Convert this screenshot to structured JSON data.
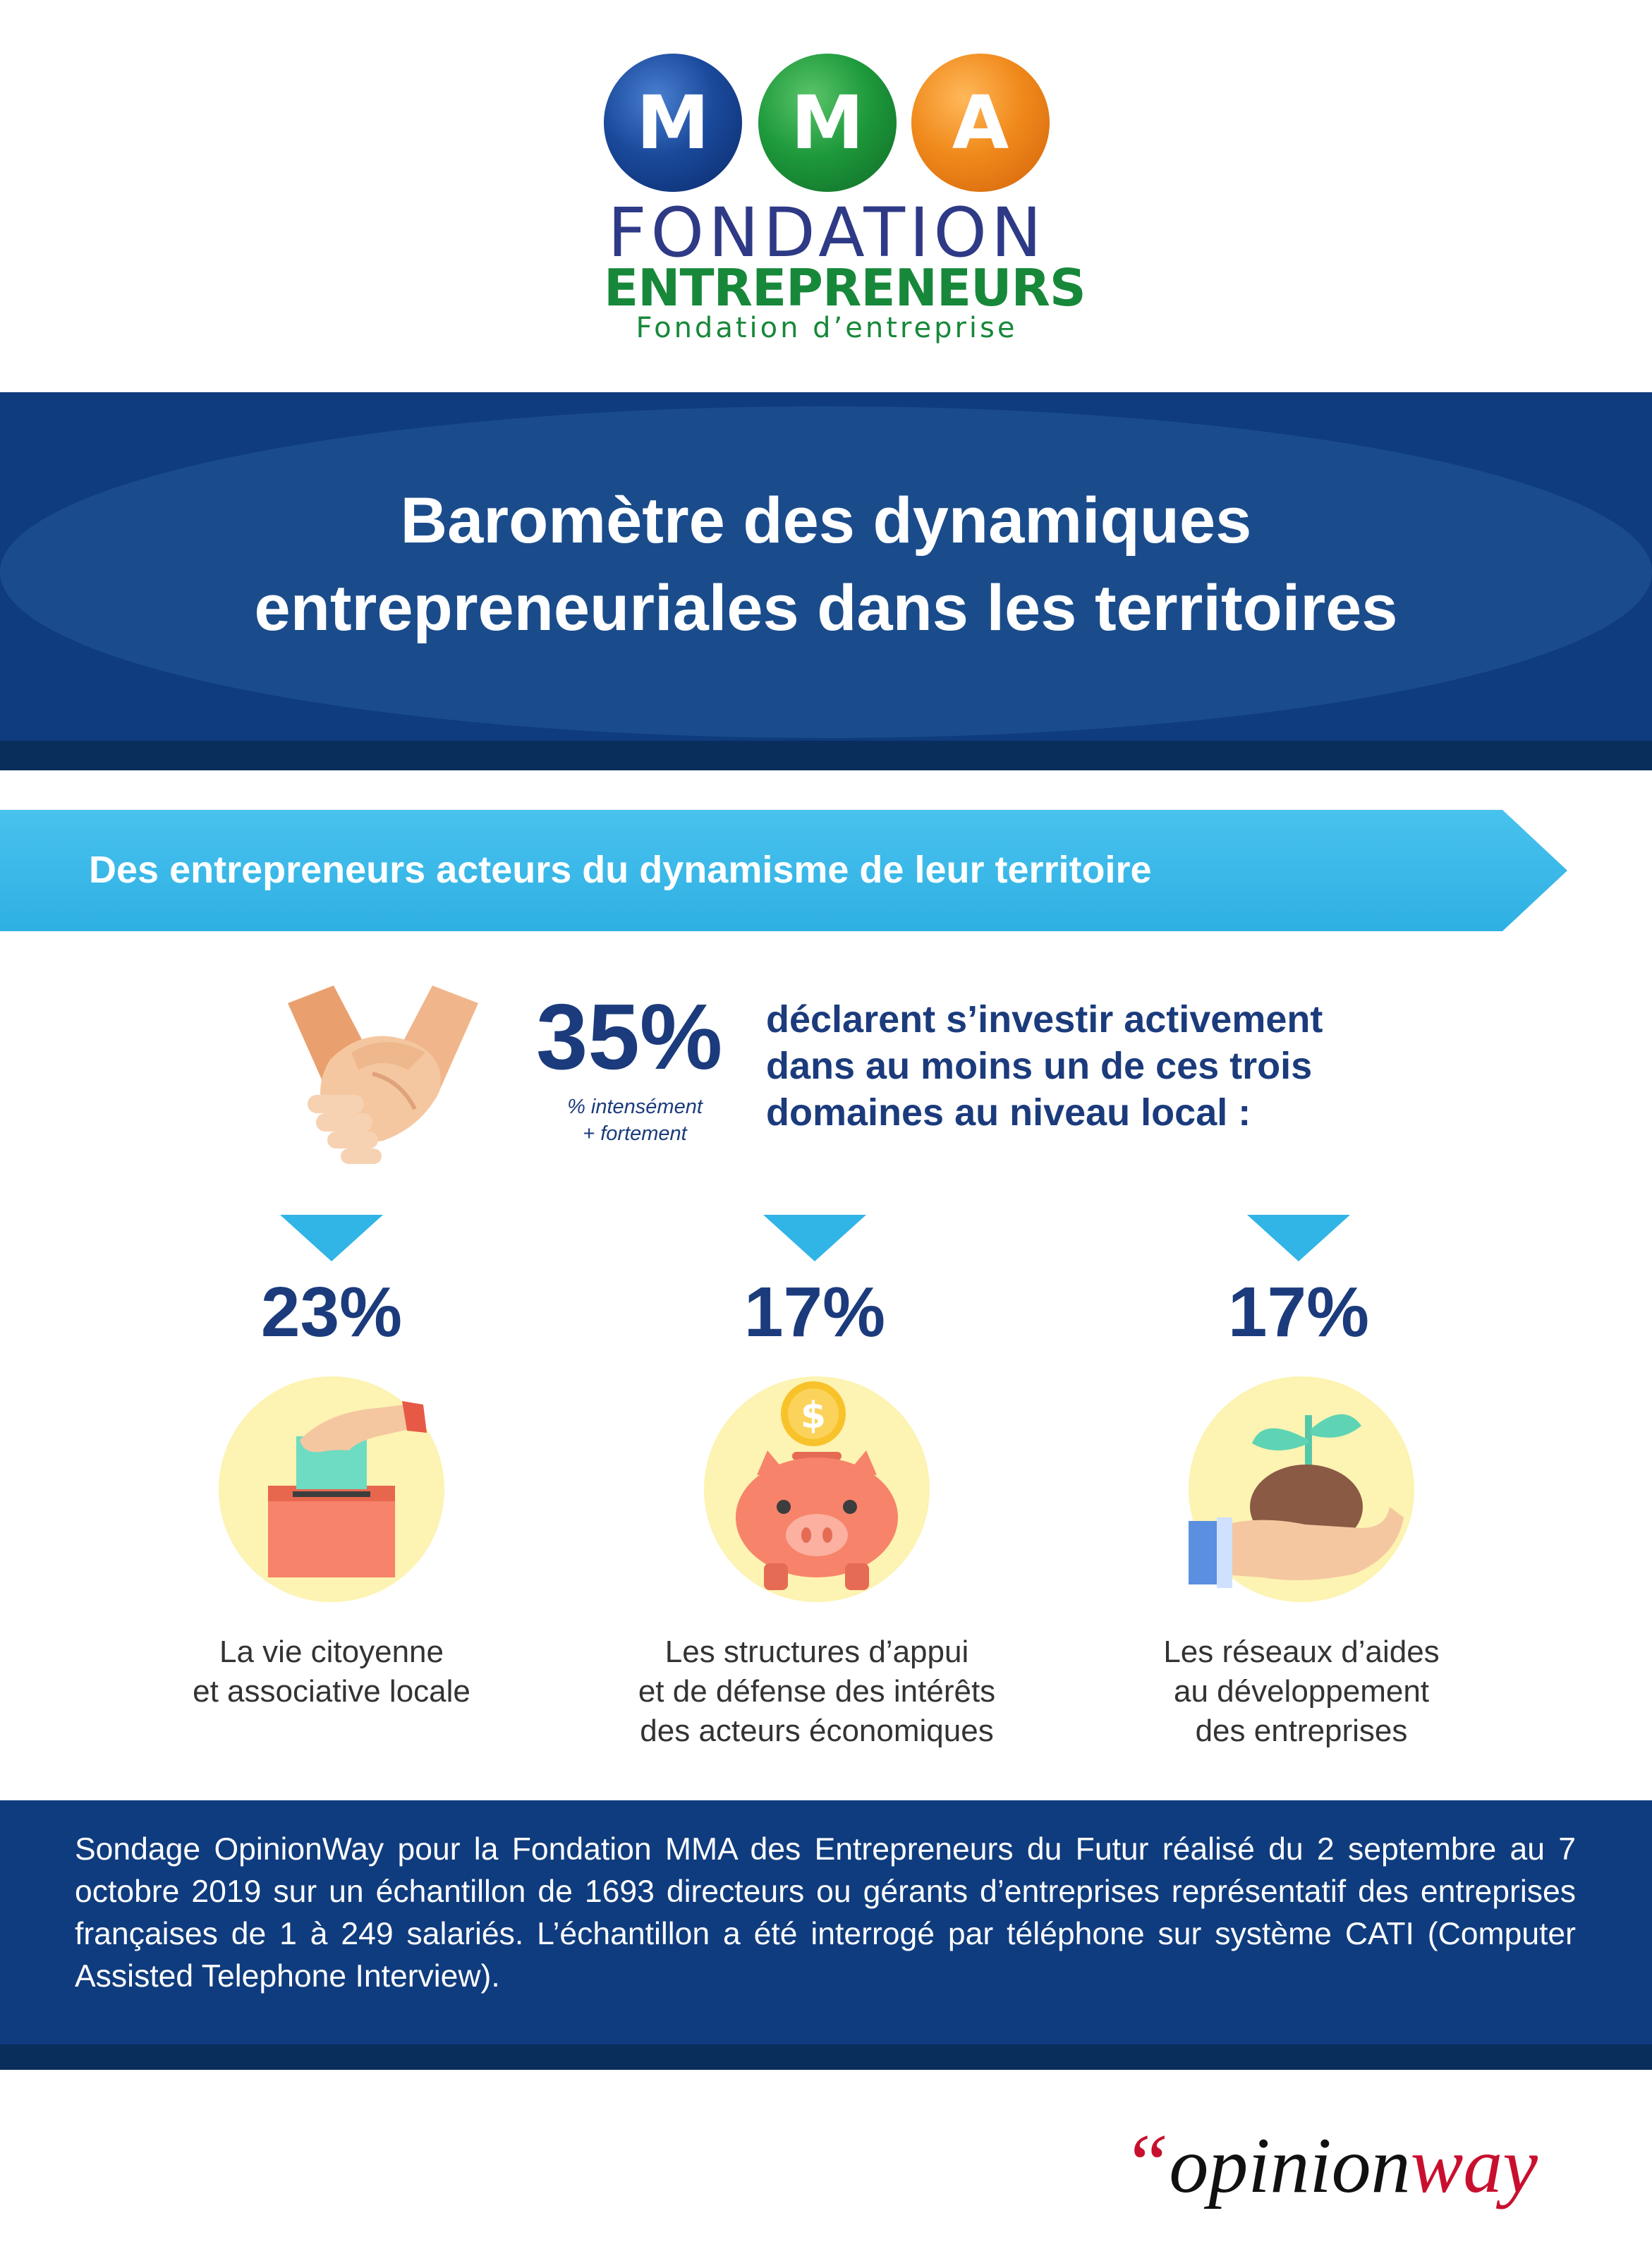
{
  "logo": {
    "ball_letters": [
      "M",
      "M",
      "A"
    ],
    "line1": "FONDATION",
    "line2": "ENTREPRENEURS",
    "line3": "Fondation d’entreprise"
  },
  "header": {
    "title_line1": "Baromètre des dynamiques",
    "title_line2": "entrepreneuriales dans les territoires"
  },
  "section": {
    "title": "Des entrepreneurs acteurs du dynamisme de leur territoire"
  },
  "headline": {
    "icon": "handshake-icon",
    "value": "35%",
    "note_line1": "% intensément",
    "note_line2": "+ fortement",
    "desc_line1": "déclarent s’investir activement",
    "desc_line2": "dans au moins un de ces trois",
    "desc_line3": "domaines au niveau local :"
  },
  "stats": [
    {
      "value": "23%",
      "icon": "ballot-box-icon",
      "label_lines": [
        "La vie citoyenne",
        "et associative locale"
      ]
    },
    {
      "value": "17%",
      "icon": "piggy-bank-icon",
      "label_lines": [
        "Les structures d’appui",
        "et de défense des intérêts",
        "des acteurs économiques"
      ]
    },
    {
      "value": "17%",
      "icon": "plant-in-hand-icon",
      "label_lines": [
        "Les réseaux d’aides",
        "au développement",
        "des entreprises"
      ]
    }
  ],
  "footer": {
    "text": "Sondage OpinionWay pour la Fondation MMA des Entrepreneurs du Futur réalisé du 2 septembre au 7 octobre 2019 sur un échantillon de 1693 directeurs ou gérants d’entreprises représentatif des entreprises françaises de 1 à 249 salariés. L’échantillon a été interrogé par téléphone sur système CATI (Computer Assisted Telephone Interview)."
  },
  "brand": {
    "quote": "“",
    "part1": "opinion",
    "part2": "way"
  },
  "colors": {
    "navy": "#0f3c7e",
    "cyan": "#31b4e6",
    "text_blue": "#1b3b7c",
    "logo_blue": "#1a4a9c",
    "logo_green": "#1e9a3c",
    "logo_orange": "#f08a1c",
    "opinionway_red": "#c8102e"
  }
}
